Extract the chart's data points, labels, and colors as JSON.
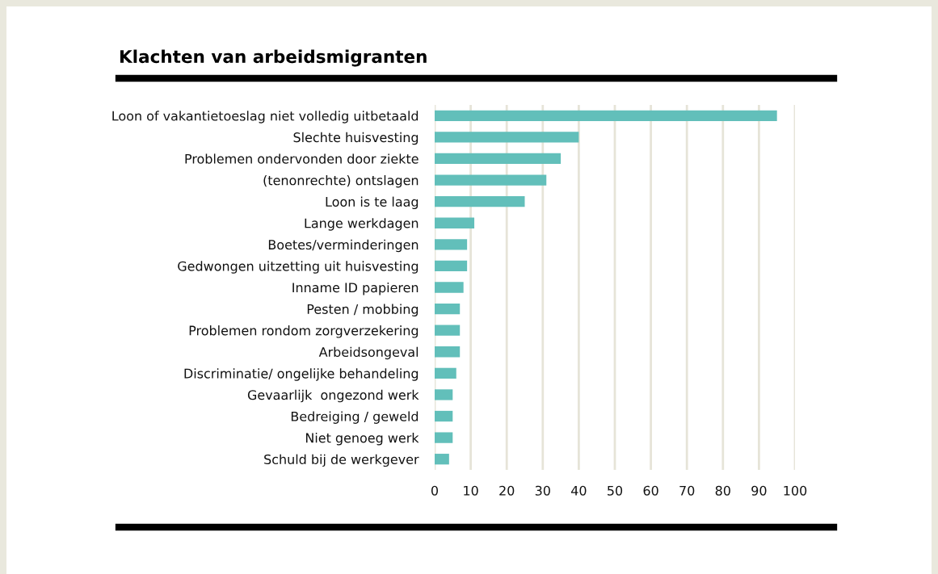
{
  "chart_data": {
    "type": "bar",
    "orientation": "horizontal",
    "title": "Klachten van arbeidsmigranten",
    "categories": [
      "Loon of vakantietoeslag niet volledig uitbetaald",
      "Slechte huisvesting",
      "Problemen ondervonden door ziekte",
      "(tenonrechte) ontslagen",
      "Loon is te laag",
      "Lange werkdagen",
      "Boetes/verminderingen",
      "Gedwongen uitzetting uit huisvesting",
      "Inname ID papieren",
      "Pesten / mobbing",
      "Problemen rondom zorgverzekering",
      "Arbeidsongeval",
      "Discriminatie/ ongelijke behandeling",
      "Gevaarlijk  ongezond werk",
      "Bedreiging / geweld",
      "Niet genoeg werk",
      "Schuld bij de werkgever"
    ],
    "values": [
      95,
      40,
      35,
      31,
      25,
      11,
      9,
      9,
      8,
      7,
      7,
      7,
      6,
      5,
      5,
      5,
      4
    ],
    "color": "#62bfba",
    "xlim": [
      0,
      100
    ],
    "xticks": [
      0,
      10,
      20,
      30,
      40,
      50,
      60,
      70,
      80,
      90,
      100
    ],
    "grid": "x"
  }
}
